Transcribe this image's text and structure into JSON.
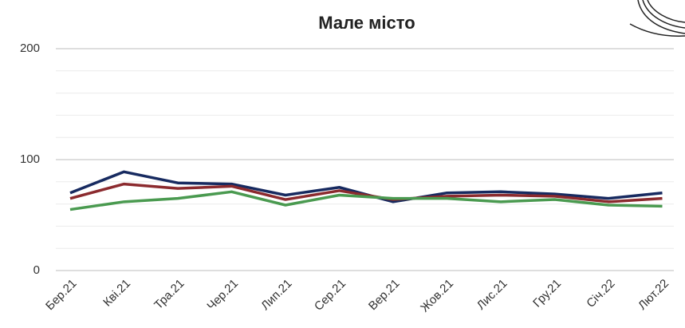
{
  "chart_data": {
    "type": "line",
    "title": "Мале місто",
    "categories": [
      "Бер.21",
      "Кві.21",
      "Тра.21",
      "Чер.21",
      "Лип.21",
      "Сер.21",
      "Вер.21",
      "Жов.21",
      "Лис.21",
      "Гру.21",
      "Січ.22",
      "Лют.22"
    ],
    "series": [
      {
        "color": "#172a60",
        "values": [
          70,
          89,
          79,
          78,
          68,
          75,
          62,
          70,
          71,
          69,
          65,
          70
        ]
      },
      {
        "color": "#8b2a2e",
        "values": [
          65,
          78,
          74,
          76,
          64,
          72,
          64,
          67,
          68,
          67,
          62,
          65
        ]
      },
      {
        "color": "#4a9a50",
        "values": [
          55,
          62,
          65,
          71,
          59,
          68,
          65,
          65,
          62,
          64,
          59,
          58
        ]
      }
    ],
    "ylim": [
      0,
      200
    ],
    "yticks": [
      0,
      100,
      200
    ],
    "yminorticks": [
      20,
      40,
      60,
      80,
      120,
      140,
      160,
      180
    ],
    "grid": true
  }
}
